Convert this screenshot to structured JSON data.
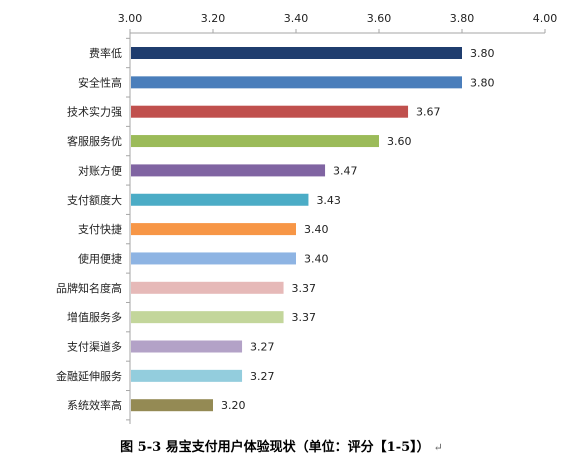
{
  "chart_data": {
    "type": "bar",
    "orientation": "horizontal",
    "categories": [
      "费率低",
      "安全性高",
      "技术实力强",
      "客服服务优",
      "对账方便",
      "支付额度大",
      "支付快捷",
      "使用便捷",
      "品牌知名度高",
      "增值服务多",
      "支付渠道多",
      "金融延伸服务",
      "系统效率高"
    ],
    "values": [
      3.8,
      3.8,
      3.67,
      3.6,
      3.47,
      3.43,
      3.4,
      3.4,
      3.37,
      3.37,
      3.27,
      3.27,
      3.2
    ],
    "value_labels": [
      "3.80",
      "3.80",
      "3.67",
      "3.60",
      "3.47",
      "3.43",
      "3.40",
      "3.40",
      "3.37",
      "3.37",
      "3.27",
      "3.27",
      "3.20"
    ],
    "colors": [
      "#1f3d6e",
      "#4a7ebb",
      "#c0504d",
      "#9bbb59",
      "#8064a2",
      "#4bacc6",
      "#f79646",
      "#8eb4e3",
      "#e6b9b8",
      "#c3d69b",
      "#b3a2c7",
      "#93cddd",
      "#948a54"
    ],
    "xlim": [
      3.0,
      4.0
    ],
    "x_ticks": [
      "3.00",
      "3.20",
      "3.40",
      "3.60",
      "3.80",
      "4.00"
    ],
    "x_axis_position": "top",
    "grid": false,
    "legend": false,
    "caption": "图 5-3  易宝支付用户体验现状（单位：评分【1-5】）",
    "caption_mark": "↵"
  }
}
